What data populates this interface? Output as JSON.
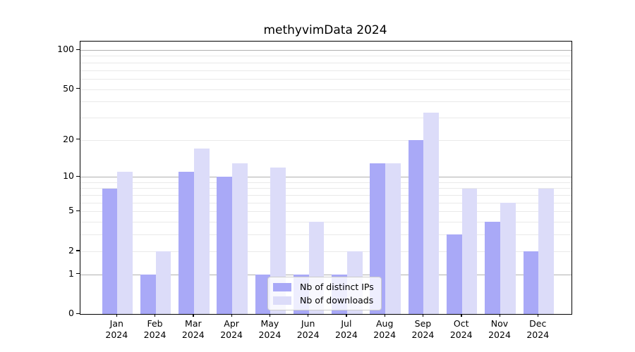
{
  "chart_data": {
    "type": "bar",
    "title": "methyvimData 2024",
    "categories": [
      "Jan",
      "Feb",
      "Mar",
      "Apr",
      "May",
      "Jun",
      "Jul",
      "Aug",
      "Sep",
      "Oct",
      "Nov",
      "Dec"
    ],
    "x_year": "2024",
    "series": [
      {
        "name": "Nb of distinct IPs",
        "color": "#a9a9f7",
        "values": [
          8,
          1,
          11,
          10,
          1,
          1,
          1,
          13,
          20,
          3,
          4,
          2
        ]
      },
      {
        "name": "Nb of downloads",
        "color": "#dcdcf9",
        "values": [
          11,
          2,
          17,
          13,
          12,
          4,
          2,
          13,
          33,
          8,
          6,
          8
        ]
      }
    ],
    "y_axis": {
      "scale": "log1p",
      "tick_labels": [
        "100",
        "50",
        "20",
        "10",
        "5",
        "2",
        "1",
        "0"
      ],
      "tick_values": [
        100,
        50,
        20,
        10,
        5,
        2,
        1,
        0
      ],
      "range": [
        0,
        116
      ]
    },
    "grid": {
      "on": true,
      "major_values": [
        1,
        10,
        100
      ],
      "minor_values": [
        2,
        3,
        4,
        5,
        6,
        7,
        8,
        9,
        20,
        30,
        40,
        50,
        60,
        70,
        80,
        90
      ],
      "major_color": "#b0b0b0",
      "minor_color": "#e9e9e9"
    },
    "legend": {
      "position": "lower center"
    }
  }
}
